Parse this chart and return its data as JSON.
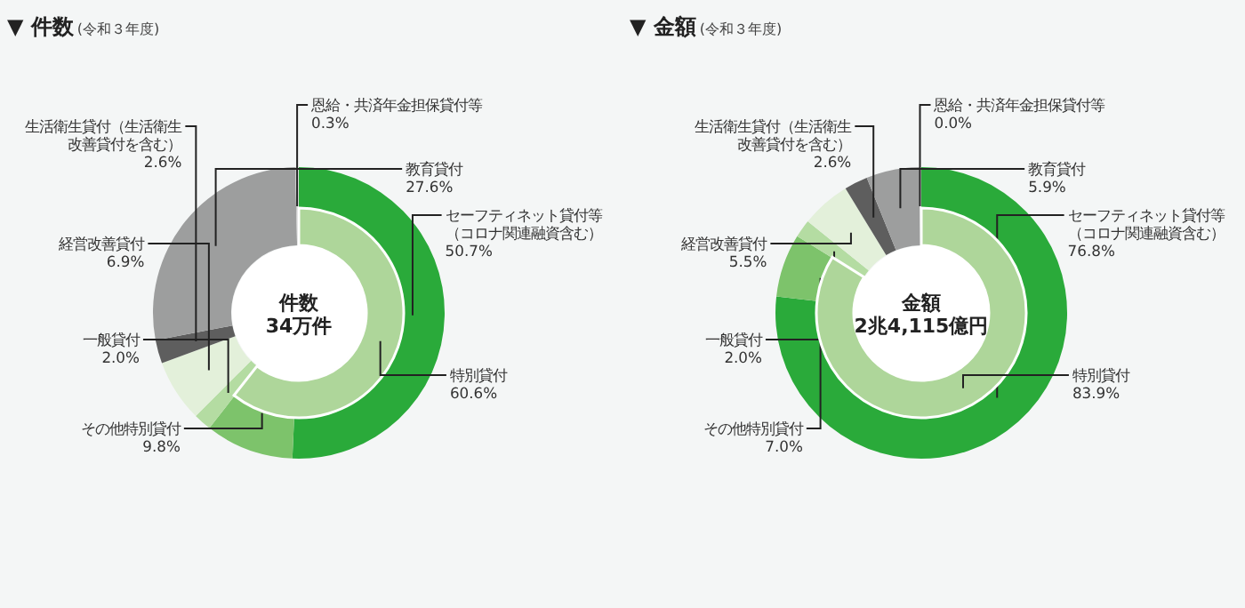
{
  "chart_data": [
    {
      "type": "donut",
      "title": "▼ 件数",
      "subtitle": "(令和３年度)",
      "annotations": [
        "件数\n34万件"
      ],
      "categories": [
        "セーフティネット貸付等（コロナ関連融資含む）",
        "その他特別貸付",
        "一般貸付",
        "経営改善貸付",
        "生活衛生貸付（生活衛生改善貸付を含む）",
        "教育貸付",
        "恩給・共済年金担保貸付等"
      ],
      "values": [
        50.7,
        9.8,
        2.0,
        6.9,
        2.6,
        27.6,
        0.3
      ],
      "value_labels": [
        "50.7%",
        "9.8%",
        "2.0%",
        "6.9%",
        "2.6%",
        "27.6%",
        "0.3%"
      ],
      "colors": [
        "#2aaa3a",
        "#7dc36b",
        "#b4dca2",
        "#e3f0da",
        "#5e5e5e",
        "#9d9e9e",
        "#c8c8c8"
      ]
    },
    {
      "type": "donut",
      "categories": [
        "特別貸付"
      ],
      "values": [
        60.6
      ],
      "value_labels": [
        "60.6%"
      ],
      "colors": [
        "#aed69a"
      ]
    },
    {
      "type": "donut",
      "title": "▼ 金額",
      "subtitle": "(令和３年度)",
      "annotations": [
        "金額\n2兆4,115億円"
      ],
      "categories": [
        "セーフティネット貸付等（コロナ関連融資含む）",
        "その他特別貸付",
        "一般貸付",
        "経営改善貸付",
        "生活衛生貸付（生活衛生改善貸付を含む）",
        "教育貸付",
        "恩給・共済年金担保貸付等"
      ],
      "values": [
        76.8,
        7.0,
        2.0,
        5.5,
        2.6,
        5.9,
        0.0
      ],
      "value_labels": [
        "76.8%",
        "7.0%",
        "2.0%",
        "5.5%",
        "2.6%",
        "5.9%",
        "0.0%"
      ],
      "colors": [
        "#2aaa3a",
        "#7dc36b",
        "#b4dca2",
        "#e3f0da",
        "#5e5e5e",
        "#9d9e9e",
        "#c8c8c8"
      ]
    },
    {
      "type": "donut",
      "categories": [
        "特別貸付"
      ],
      "values": [
        83.9
      ],
      "value_labels": [
        "83.9%"
      ],
      "colors": [
        "#aed69a"
      ]
    }
  ]
}
